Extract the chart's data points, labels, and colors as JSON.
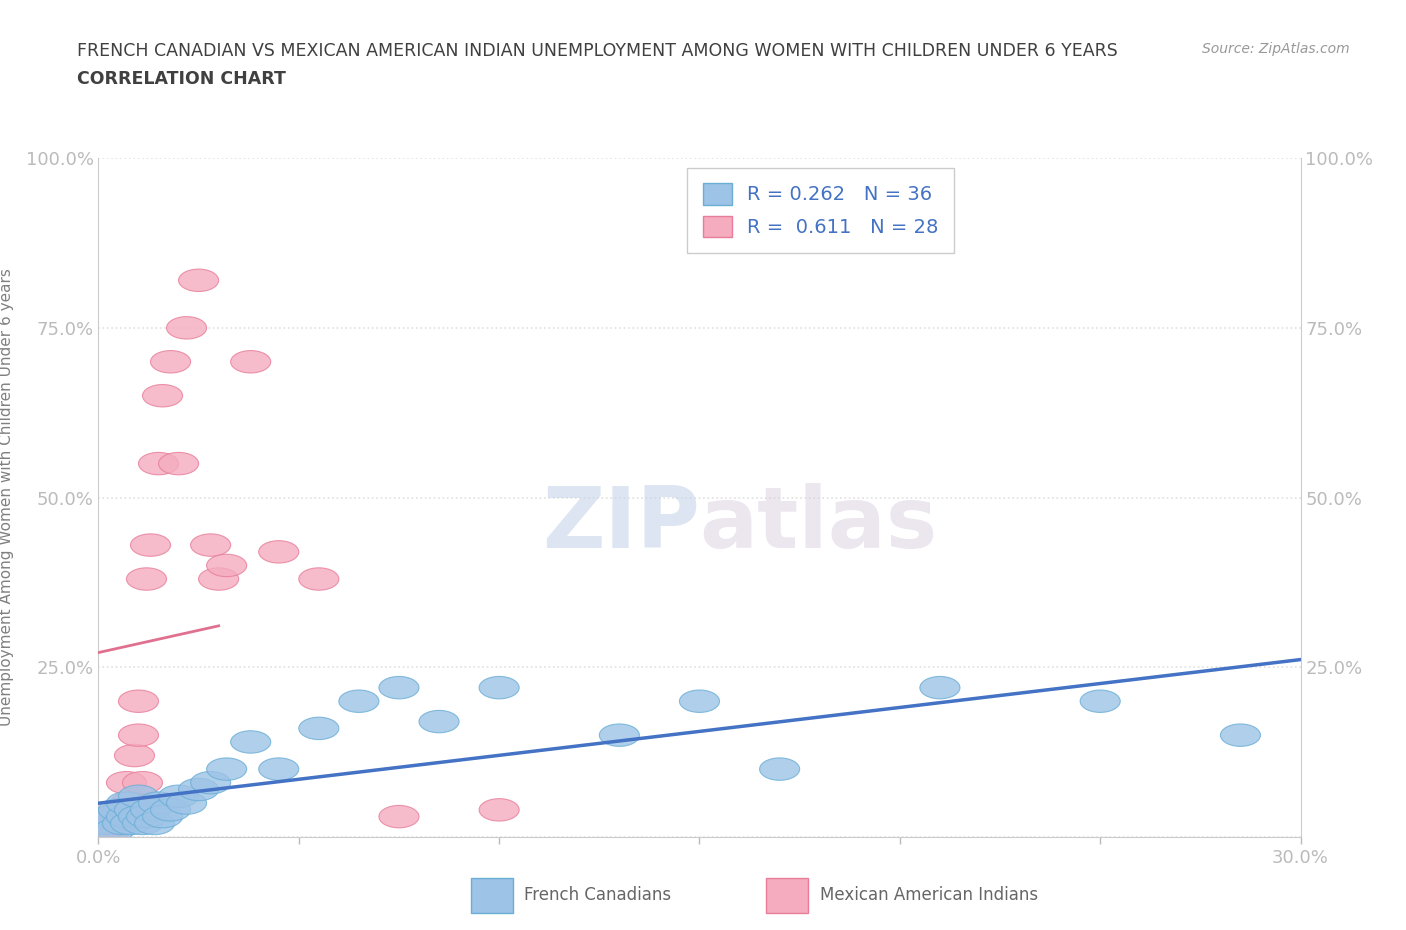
{
  "title_line1": "FRENCH CANADIAN VS MEXICAN AMERICAN INDIAN UNEMPLOYMENT AMONG WOMEN WITH CHILDREN UNDER 6 YEARS",
  "title_line2": "CORRELATION CHART",
  "source_text": "Source: ZipAtlas.com",
  "ylabel": "Unemployment Among Women with Children Under 6 years",
  "xlim": [
    0.0,
    0.3
  ],
  "ylim": [
    0.0,
    1.0
  ],
  "xticks": [
    0.0,
    0.05,
    0.1,
    0.15,
    0.2,
    0.25,
    0.3
  ],
  "yticks": [
    0.0,
    0.25,
    0.5,
    0.75,
    1.0
  ],
  "french_canadians_x": [
    0.002,
    0.003,
    0.004,
    0.005,
    0.006,
    0.007,
    0.007,
    0.008,
    0.009,
    0.01,
    0.01,
    0.011,
    0.012,
    0.013,
    0.014,
    0.015,
    0.016,
    0.018,
    0.02,
    0.022,
    0.025,
    0.028,
    0.032,
    0.038,
    0.045,
    0.055,
    0.065,
    0.075,
    0.085,
    0.1,
    0.13,
    0.15,
    0.17,
    0.21,
    0.25,
    0.285
  ],
  "french_canadians_y": [
    0.02,
    0.03,
    0.01,
    0.04,
    0.02,
    0.03,
    0.05,
    0.02,
    0.04,
    0.03,
    0.06,
    0.02,
    0.03,
    0.04,
    0.02,
    0.05,
    0.03,
    0.04,
    0.06,
    0.05,
    0.07,
    0.08,
    0.1,
    0.14,
    0.1,
    0.16,
    0.2,
    0.22,
    0.17,
    0.22,
    0.15,
    0.2,
    0.1,
    0.22,
    0.2,
    0.15
  ],
  "mexican_ai_x": [
    0.001,
    0.002,
    0.003,
    0.004,
    0.005,
    0.006,
    0.007,
    0.008,
    0.009,
    0.01,
    0.01,
    0.011,
    0.012,
    0.013,
    0.015,
    0.016,
    0.018,
    0.02,
    0.022,
    0.025,
    0.028,
    0.03,
    0.032,
    0.038,
    0.045,
    0.055,
    0.075,
    0.1
  ],
  "mexican_ai_y": [
    0.01,
    0.02,
    0.01,
    0.03,
    0.02,
    0.04,
    0.08,
    0.05,
    0.12,
    0.15,
    0.2,
    0.08,
    0.38,
    0.43,
    0.55,
    0.65,
    0.7,
    0.55,
    0.75,
    0.82,
    0.43,
    0.38,
    0.4,
    0.7,
    0.42,
    0.38,
    0.03,
    0.04
  ],
  "french_color": "#9DC3E6",
  "french_edge_color": "#6AAED6",
  "mexican_color": "#F4ACBE",
  "mexican_edge_color": "#E87D9A",
  "french_R": 0.262,
  "french_N": 36,
  "mexican_R": 0.611,
  "mexican_N": 28,
  "regression_french_color": "#4472C4",
  "regression_mexican_color": "#E07090",
  "watermark_zip": "ZIP",
  "watermark_atlas": "atlas",
  "grid_color": "#E0E0E0",
  "background_color": "#FFFFFF",
  "title_color": "#404040",
  "axis_label_color": "#808080",
  "tick_color_blue": "#4472C4",
  "legend_label_color": "#4472C4"
}
